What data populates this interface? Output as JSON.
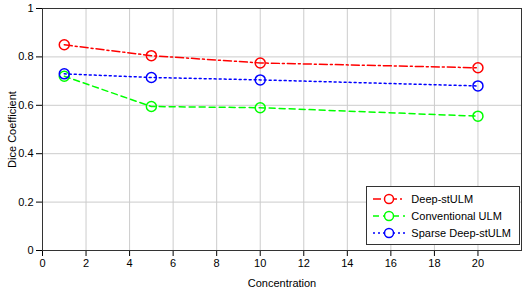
{
  "chart_data": {
    "type": "line",
    "x_label": "Concentration",
    "y_label": "Dice Coefficient",
    "x": [
      1,
      5,
      10,
      20
    ],
    "series": [
      {
        "name": "Deep-stULM",
        "color": "#ff0000",
        "line_style": "dashdot",
        "marker": "circle",
        "values": [
          0.85,
          0.805,
          0.775,
          0.755
        ]
      },
      {
        "name": "Conventional ULM",
        "color": "#00ff00",
        "line_style": "dashed",
        "marker": "circle",
        "values": [
          0.72,
          0.595,
          0.59,
          0.555
        ]
      },
      {
        "name": "Sparse Deep-stULM",
        "color": "#0000ff",
        "line_style": "dotted",
        "marker": "circle",
        "values": [
          0.73,
          0.715,
          0.705,
          0.68
        ]
      }
    ],
    "xlim": [
      0,
      22
    ],
    "xticks": [
      0,
      2,
      4,
      6,
      8,
      10,
      12,
      14,
      16,
      18,
      20
    ],
    "ylim": [
      0,
      1
    ],
    "yticks": [
      0,
      0.2,
      0.4,
      0.6,
      0.8,
      1
    ],
    "grid": true,
    "legend": "lower right"
  }
}
